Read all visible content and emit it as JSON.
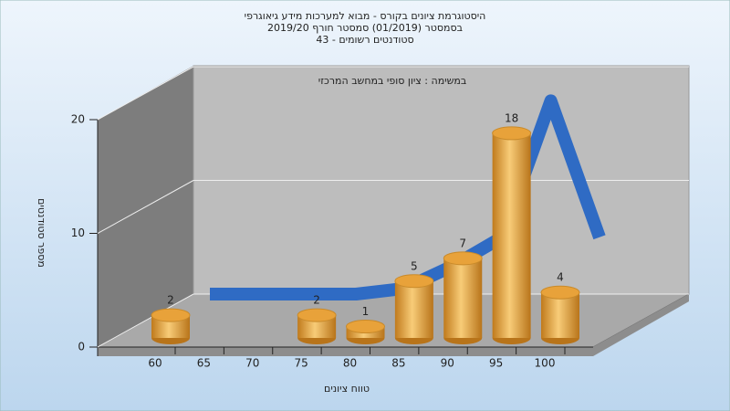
{
  "chart_data": {
    "type": "bar",
    "title": [
      "היסטוגרמת ציונים בקורס - מבוא למערכות מידע גיאוגרפי",
      "בסמסטר  (01/2019)  סמסטר חורף 2019/20",
      "סטודנטים רשומים - 43"
    ],
    "subtitle": "במשימה : ציון סופי במחשב המרכזי",
    "x_label": "טווח ציונים",
    "y_label": "מספר סטודנטים",
    "x": [
      60,
      65,
      70,
      75,
      80,
      85,
      90,
      95,
      100
    ],
    "values": [
      2,
      null,
      null,
      2,
      1,
      5,
      7,
      18,
      4
    ],
    "curve": [
      0,
      0,
      0,
      0,
      0.5,
      2.5,
      5,
      17,
      5
    ],
    "color": "#e8a23a",
    "curve_color": "#2f6bc4",
    "ylim": [
      0,
      20
    ],
    "yticks": [
      0,
      10,
      20
    ],
    "grid": true
  }
}
